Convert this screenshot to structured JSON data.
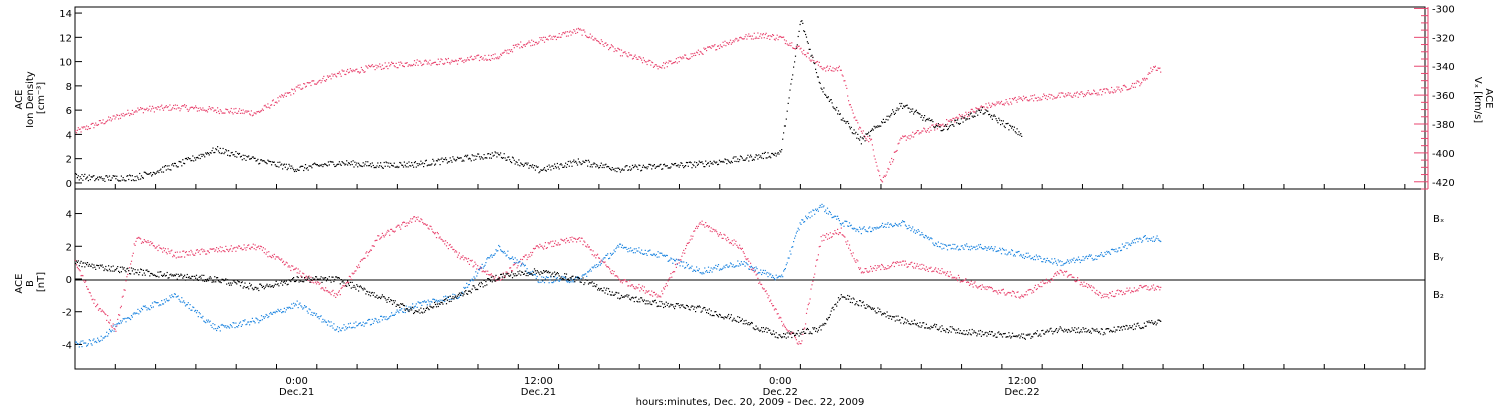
{
  "colors": {
    "axis": "#000000",
    "density": "#000000",
    "speed": "#e8456f",
    "bx": "#000000",
    "by": "#1f86e0",
    "bz": "#e8456f"
  },
  "chart_data": [
    {
      "type": "scatter",
      "panel": "top",
      "ylabel_left": [
        "ACE",
        "Ion Density",
        "[cm⁻³]"
      ],
      "ylabel_right": [
        "ACE",
        "Vₓ [km/s]"
      ],
      "left_axis": {
        "ylim": [
          -0.5,
          14.5
        ],
        "ticks": [
          0,
          2,
          4,
          6,
          8,
          10,
          12,
          14
        ]
      },
      "right_axis": {
        "ylim": [
          -425,
          -299
        ],
        "ticks": [
          -420,
          -400,
          -380,
          -360,
          -340,
          -320,
          -300
        ]
      },
      "x_unit": "hours since 2009-12-20 00:00",
      "series": [
        {
          "axis": "left",
          "color_key": "density",
          "x": [
            13,
            14,
            16,
            18,
            20,
            22,
            24,
            26,
            28,
            30,
            32,
            34,
            36,
            38,
            40,
            42,
            44,
            46,
            48,
            49,
            50,
            51,
            52,
            54,
            56,
            58,
            60
          ],
          "y": [
            0.6,
            0.4,
            0.5,
            1.5,
            2.8,
            1.9,
            1.2,
            1.7,
            1.5,
            1.6,
            2.0,
            2.4,
            1.1,
            1.8,
            1.2,
            1.4,
            1.6,
            2.0,
            2.5,
            13.5,
            8.0,
            5.5,
            3.5,
            6.5,
            4.5,
            6.0,
            4.0
          ]
        },
        {
          "axis": "right",
          "color_key": "speed",
          "x": [
            13,
            14,
            16,
            18,
            20,
            22,
            24,
            26,
            28,
            30,
            32,
            33,
            34,
            35,
            36,
            38,
            40,
            42,
            44,
            46,
            47,
            48,
            49,
            50,
            50.5,
            51,
            51.5,
            52,
            52.5,
            53,
            54,
            56,
            58,
            60,
            62,
            63.7,
            65,
            66,
            66.5,
            66.9
          ],
          "y": [
            -385,
            -380,
            -370,
            -368,
            -370,
            -372,
            -355,
            -345,
            -340,
            -337,
            -336,
            -334,
            -333,
            -325,
            -322,
            -315,
            -330,
            -340,
            -330,
            -320,
            -318,
            -320,
            -328,
            -340,
            -342,
            -341,
            -370,
            -385,
            -392,
            -420,
            -390,
            -380,
            -368,
            -362,
            -360,
            -358,
            -355,
            -350,
            -340,
            -342
          ]
        }
      ]
    },
    {
      "type": "scatter",
      "panel": "bottom",
      "ylabel_left": [
        "ACE",
        "B",
        "[nT]"
      ],
      "ylim": [
        -5.5,
        5.5
      ],
      "ticks": [
        -4,
        -2,
        0,
        2,
        4
      ],
      "zero_line": true,
      "legend": [
        "Bₓ",
        "Bᵧ",
        "B₂"
      ],
      "legend_position": "right",
      "x_unit": "hours since 2009-12-20 00:00",
      "series": [
        {
          "name": "Bₓ",
          "color_key": "bx",
          "x": [
            13,
            14,
            16,
            18,
            20,
            22,
            24,
            26,
            28,
            30,
            32,
            34,
            36,
            38,
            40,
            42,
            44,
            46,
            48,
            50,
            51,
            52,
            54,
            56,
            58,
            60,
            62,
            64,
            66,
            66.9
          ],
          "y": [
            1.0,
            0.8,
            0.5,
            0.2,
            0.0,
            -0.5,
            0.0,
            0.0,
            -1.0,
            -2.0,
            -1.0,
            0.2,
            0.5,
            0.0,
            -1.0,
            -1.5,
            -1.8,
            -2.5,
            -3.5,
            -3.0,
            -1.0,
            -1.5,
            -2.5,
            -3.0,
            -3.3,
            -3.5,
            -3.0,
            -3.2,
            -2.8,
            -2.5
          ]
        },
        {
          "name": "Bᵧ",
          "color_key": "by",
          "x": [
            13,
            14,
            16,
            18,
            20,
            22,
            24,
            26,
            28,
            30,
            32,
            34,
            36,
            38,
            40,
            42,
            44,
            46,
            48,
            49,
            50,
            51,
            52,
            54,
            56,
            58,
            60,
            62,
            64,
            66,
            66.9
          ],
          "y": [
            -4.0,
            -3.8,
            -2.0,
            -1.0,
            -3.0,
            -2.5,
            -1.5,
            -3.0,
            -2.5,
            -1.5,
            -1.0,
            2.0,
            0.0,
            0.0,
            2.0,
            1.5,
            0.5,
            1.0,
            0.0,
            3.5,
            4.5,
            3.5,
            3.0,
            3.5,
            2.0,
            2.0,
            1.5,
            1.0,
            1.5,
            2.5,
            2.5
          ]
        },
        {
          "name": "B₂",
          "color_key": "bz",
          "x": [
            13,
            14,
            15,
            16,
            18,
            20,
            22,
            24,
            26,
            28,
            30,
            32,
            34,
            36,
            38,
            40,
            42,
            44,
            46,
            48,
            49,
            50,
            51,
            52,
            54,
            56,
            58,
            60,
            62,
            64,
            66,
            66.9
          ],
          "y": [
            1.0,
            -1.5,
            -3.0,
            2.5,
            1.5,
            1.8,
            2.0,
            0.5,
            -1.0,
            2.5,
            3.8,
            1.5,
            0.0,
            2.0,
            2.5,
            0.0,
            -1.0,
            3.5,
            2.0,
            -2.5,
            -4.0,
            2.5,
            3.0,
            0.5,
            1.0,
            0.5,
            -0.5,
            -1.0,
            0.5,
            -1.0,
            -0.5,
            -0.5
          ]
        }
      ]
    }
  ],
  "x_axis": {
    "range_hours": [
      13,
      80
    ],
    "major_ticks": [
      {
        "hour": 24,
        "time": "0:00",
        "date": "Dec.21"
      },
      {
        "hour": 36,
        "time": "12:00",
        "date": "Dec.21"
      },
      {
        "hour": 48,
        "time": "0:00",
        "date": "Dec.22"
      },
      {
        "hour": 60,
        "time": "12:00",
        "date": "Dec.22"
      }
    ],
    "title": "hours:minutes, Dec. 20, 2009 - Dec. 22, 2009"
  }
}
